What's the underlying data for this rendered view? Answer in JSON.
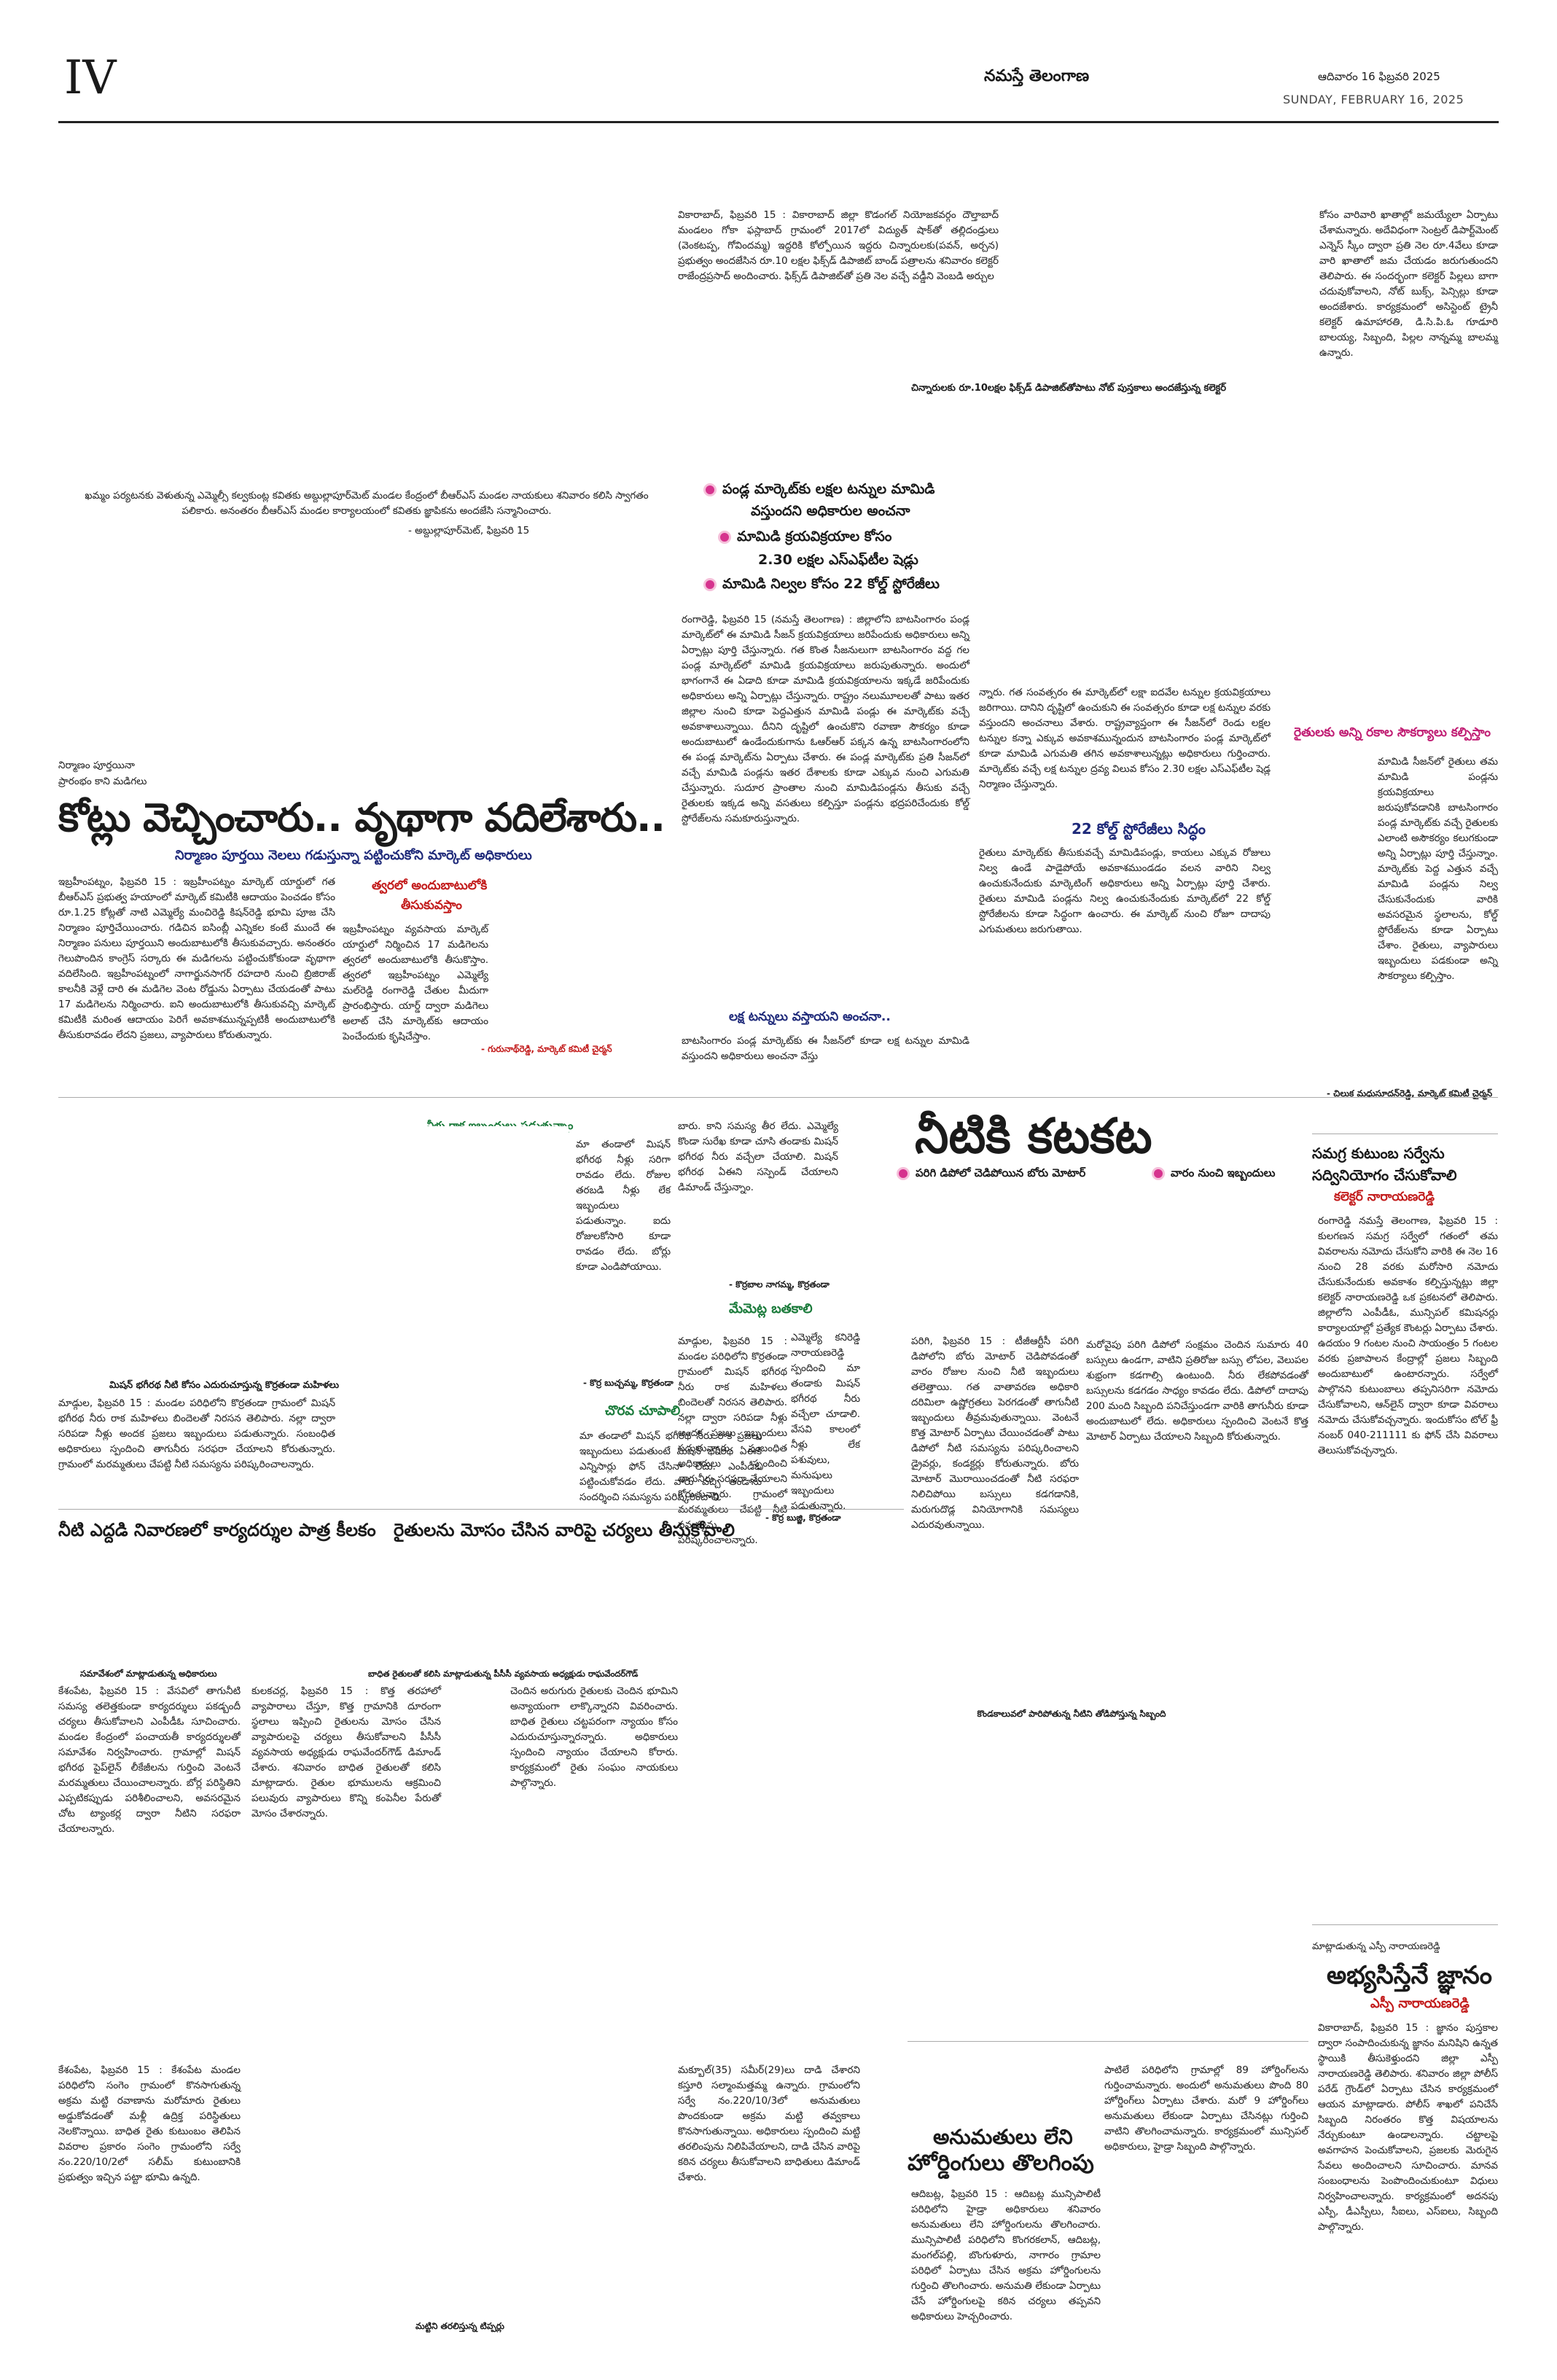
{
  "header": {
    "page_number": "IV",
    "paper_name": "నమస్తే తెలంగాణ",
    "date_telugu": "ఆదివారం 16 ఫిబ్రవరి 2025",
    "date_english": "SUNDAY, FEBRUARY 16, 2025"
  },
  "top_story": {
    "col1": "వికారాబాద్, ఫిబ్రవరి 15 : వికారాబాద్ జిల్లా కొడంగల్ నియోజకవర్గం దౌల్తాబాద్ మండలం గోకా ఫస్లాబాద్ గ్రామంలో 2017లో విద్యుత్ షాక్‌తో తల్లిదండ్రులు (వెంకటప్ప, గోవిందమ్మ) ఇద్దరికి కోల్పోయిన ఇద్దరు చిన్నారులకు(పవన్, అర్చన) ప్రభుత్వం అందజేసిన రూ.10 లక్షల ఫిక్స్‌డ్ డిపాజిట్ బాండ్ పత్రాలను శనివారం కలెక్టర్ రాజేంద్రప్రసాద్ అందించారు. ఫిక్స్‌డ్ డిపాజిట్‌తో ప్రతి నెల వచ్చే వడ్డీని వెంబడి అర్చుల",
    "col2": "కోసం వారివారి ఖాతాల్లో జమయ్యేలా ఏర్పాటు చేశామన్నారు. అదేవిధంగా సెంట్రల్ డిపార్ట్‌మెంట్ ఎన్నెస్ స్కీం ద్వారా ప్రతి నెల రూ.4వేలు కూడా వారి ఖాతాలో జమ చేయడం జరుగుతుందని తెలిపారు. ఈ సందర్భంగా కలెక్టర్ పిల్లలు బాగా చదువుకోవాలని, నోట్ బుక్స్, పెన్సిల్లు కూడా అందజేశారు. కార్యక్రమంలో అసిస్టెంట్ ట్రైనీ కలెక్టర్ ఉమాహారతి, డి.సి.పి.ఓ గూడూరి బాలయ్య, సిబ్బంది, పిల్లల నాన్నమ్మ బాలమ్మ ఉన్నారు.",
    "caption": "చిన్నారులకు రూ.10లక్షల ఫిక్స్‌డ్ డిపాజిట్‌తోపాటు నోట్ పుస్తకాలు అందజేస్తున్న కలెక్టర్"
  },
  "left_photo_caption": "ఖమ్మం పర్యటనకు వెళుతున్న ఎమ్మెల్సీ కల్వకుంట్ల కవితకు అబ్దుల్లాపూర్‌మెట్ మండల కేంద్రంలో బీఆర్ఎస్ మండల నాయకులు శనివారం కలిసి స్వాగతం పలికారు. అనంతరం బీఆర్ఎస్ మండల కార్యాలయంలో కవితకు జ్ఞాపికను అందజేసి సన్మానించారు.",
  "left_photo_credit": "- అబ్దుల్లాపూర్‌మెట్, ఫిబ్రవరి 15",
  "mango_story": {
    "bullet1": "పండ్ల మార్కెట్‌కు లక్షల టన్నుల మామిడి",
    "bullet1b": "వస్తుందని అధికారుల అంచనా",
    "bullet2": "మామిడి క్రయవిక్రయాల కోసం",
    "bullet2b": "2.30 లక్షల ఎస్ఎఫ్‌టీల షెడ్లు",
    "bullet3": "మామిడి నిల్వల కోసం 22 కోల్డ్ స్టోరేజీలు",
    "body": "రంగారెడ్డి, ఫిబ్రవరి 15 (నమస్తే తెలంగాణ) : జిల్లాలోని బాటసింగారం పండ్ల మార్కెట్‌లో ఈ మామిడి సీజన్ క్రయవిక్రయాలు జరిపేందుకు అధికారులు అన్ని ఏర్పాట్లు పూర్తి చేస్తున్నారు. గత కొంత సీజనులుగా బాటసింగారం వద్ద గల పండ్ల మార్కెట్‌లో మామిడి క్రయవిక్రయాలు జరుపుతున్నారు. అందులో భాగంగానే ఈ ఏడాది కూడా మామిడి క్రయవిక్రయాలను ఇక్కడే జరిపేందుకు అధికారులు అన్ని ఏర్పాట్లు చేస్తున్నారు. రాష్ట్రం నలుమూలలతో పాటు ఇతర జిల్లాల నుంచి కూడా పెద్దఎత్తున మామిడి పండ్లు ఈ మార్కెట్‌కు వచ్చే అవకాశాలున్నాయి. దీనిని దృష్టిలో ఉంచుకొని రవాణా సౌకర్యం కూడా అందుబాటులో ఉండేందుకుగాను ఓఆర్ఆర్ పక్కన ఉన్న బాటసింగారంలోని ఈ పండ్ల మార్కెట్‌ను ఏర్పాటు చేశారు. ఈ పండ్ల మార్కెట్‌కు ప్రతి సీజన్‌లో వచ్చే మామిడి పండ్లను ఇతర దేశాలకు కూడా ఎక్కువ నుంచి ఎగుమతి చేస్తున్నారు. సుదూర ప్రాంతాల నుంచి మామిడిపండ్లను తీసుకు వచ్చే రైతులకు ఇక్కడ అన్ని వసతులు కల్పిస్తూ పండ్లను భద్రపరిచేందుకు కోల్డ్ స్టోరేజ్‌లను సమకూరుస్తున్నారు.",
    "col2": "న్నారు. గత సంవత్సరం ఈ మార్కెట్‌లో లక్షా ఐదవేల టన్నుల క్రయవిక్రయాలు జరిగాయి. దానిని దృష్టిలో ఉంచుకుని ఈ సంవత్సరం కూడా లక్ష టన్నుల వరకు వస్తుందని అంచనాలు వేశారు. రాష్ట్రవ్యాప్తంగా ఈ సీజన్‌లో రెండు లక్షల టన్నుల కన్నా ఎక్కువ అవకాశమున్నందున బాటసింగారం పండ్ల మార్కెట్‌లో కూడా మామిడి ఎగుమతి తగిన అవకాశాలున్నట్లు అధికారులు గుర్తించారు. మార్కెట్‌కు వచ్చే లక్ష టన్నుల ద్రవ్య విలువ కోసం 2.30 లక్షల ఎస్ఎఫ్‌టీల షెడ్ల నిర్మాణం చేస్తున్నారు.",
    "subhead": "22 కోల్డ్ స్టోరేజీలు సిద్ధం",
    "col2b": "రైతులు మార్కెట్‌కు తీసుకువచ్చే మామిడిపండ్లు, కాయలు ఎక్కువ రోజులు నిల్వ ఉండే పాడైపోయే అవకాశముండడం వలన వారిని నిల్వ ఉంచుకునేందుకు మార్కెటింగ్ అధికారులు అన్ని ఏర్పాట్లు పూర్తి చేశారు. రైతులు మామిడి పండ్లను నిల్వ ఉంచుకునేందుకు మార్కెట్‌లో 22 కోల్డ్ స్టోరేజీలను కూడా సిద్ధంగా ఉంచారు. ఈ మార్కెట్ నుంచి రోజూ దాదాపు ఎగుమతులు జరుగుతాయి.",
    "subhead2": "లక్ష టన్నులు వస్తాయని అంచనా..",
    "col1b": "బాటసింగారం పండ్ల మార్కెట్‌కు ఈ సీజన్‌లో కూడా లక్ష టన్నుల మామిడి వస్తుందని అధికారులు అంచనా వేస్తు"
  },
  "kotlu_story": {
    "kicker1": "నిర్మాణం పూర్తయినా",
    "kicker2": "ప్రారంభం కాని మడిగలు",
    "headline": "కోట్లు వెచ్చించారు.. వృథాగా వదిలేశారు..",
    "deck": "నిర్మాణం పూర్తయి నెలలు గడుస్తున్నా పట్టించుకోని మార్కెట్ అధికారులు",
    "body": "ఇబ్రహీంపట్నం, ఫిబ్రవరి 15 : ఇబ్రహీంపట్నం మార్కెట్ యార్డులో గత బీఆర్ఎస్ ప్రభుత్వ హయాంలో మార్కెట్ కమిటీకి ఆదాయం పెంచడం కోసం రూ.1.25 కోట్లతో నాటి ఎమ్మెల్యే మంచిరెడ్డి కిషన్‌రెడ్డి భూమి పూజ చేసి నిర్మాణం పూర్తిచేయించారు. గడిచిన ఐసింబ్లీ ఎన్నికల కంటే ముందే ఈ నిర్మాణం పనులు పూర్తయిని అందుబాటులోకి తీసుకువచ్చారు. అనంతరం గెలుపొందిన కాంగ్రెస్ సర్కారు ఈ మడిగలను పట్టించుకోకుండా వృథాగా వదిలేసింది. ఇబ్రహీంపట్నంలో నాగార్జునసాగర్ రహదారి నుంచి బ్రిజిరాజ్ కాలనీకి వెళ్లే దారి ఈ మడిగెల వెంట రోడ్డును ఏర్పాటు చేయడంతో పాటు 17 మడిగెలను నిర్మించారు. ఐని అందుబాటులోకి తీసుకువచ్చి మార్కెట్ కమిటీకి మరింత ఆదాయం పెరిగే అవకాశమున్నప్పటికీ అందుబాటులోకి తీసుకురావడం లేదని ప్రజలు, వ్యాపారులు కోరుతున్నారు.",
    "side_head1": "త్వరలో అందుబాటులోకి",
    "side_head2": "తీసుకువస్తాం",
    "side_body": "ఇబ్రహీంపట్నం వ్యవసాయ మార్కెట్ యార్డులో నిర్మించిన 17 మడిగెలను త్వరలో అందుబాటులోకి తీసుకొస్తాం. త్వరలో ఇబ్రహీంపట్నం ఎమ్మెల్యే మల్‌రెడ్డి రంగారెడ్డి చేతుల మీదుగా ప్రారంభిస్తారు. యార్డ్ ద్వారా మడిగెలు అలాట్ చేసి మార్కెట్‌కు ఆదాయం పెంచేందుకు కృషిచేస్తాం.",
    "side_credit": "- గురునాథ్‌రెడ్డి, మార్కెట్ కమిటీ చైర్మన్"
  },
  "mango_facilities": {
    "head": "రైతులకు అన్ని రకాల సౌకర్యాలు కల్పిస్తాం",
    "body": "మామిడి సీజన్‌లో రైతులు తమ మామిడి పండ్లను క్రయవిక్రయాలు జరుపుకోవడానికి బాటసింగారం పండ్ల మార్కెట్‌కు వచ్చే రైతులకు ఎలాంటి అసౌకర్యం కలుగకుండా అన్ని ఏర్పాట్లు పూర్తి చేస్తున్నాం. మార్కెట్‌కు పెద్ద ఎత్తున వచ్చే మామిడి పండ్లను నిల్వ చేసుకునేందుకు వారికి అవసరమైన స్థలాలను, కోల్డ్ స్టోరేజ్‌లను కూడా ఏర్పాటు చేశాం. రైతులు, వ్యాపారులు ఇబ్బందులు పడకుండా అన్ని సౌకర్యాలు కల్పిస్తాం.",
    "credit": "- చిలుక మధుసూదన్‌రెడ్డి, మార్కెట్ కమిటీ చైర్మన్"
  },
  "water_story": {
    "headline": "నీటికి కటకట",
    "bullet1": "పరిగి డిపోలో చెడిపోయిన బోరు మోటార్",
    "bullet2": "వారం నుంచి ఇబ్బందులు",
    "col1": "పరిగి, ఫిబ్రవరి 15 : టీజీఆర్టీసీ పరిగి డిపోలోని బోరు మోటార్ చెడిపోవడంతో వారం రోజుల నుంచి నీటి ఇబ్బందులు తలెత్తాయి. గత వాతావరణ అధికారి దరిమిలా ఉష్ణోగ్రతలు పెరగడంతో తాగునీటి ఇబ్బందులు తీవ్రమవుతున్నాయి. వెంటనే కొత్త మోటార్ ఏర్పాటు చేయించడంతో పాటు డిపోలో నీటి సమస్యను పరిష్కరించాలని డ్రైవర్లు, కండక్టర్లు కోరుతున్నారు. బోరు మోటార్ మొరాయించడంతో నీటి సరఫరా నిలిచిపోయి బస్సులు కడగడానికి, మరుగుదొడ్ల వినియోగానికి సమస్యలు ఎదురవుతున్నాయి.",
    "col2": "మరోవైపు పరిగి డిపోలో సంక్షమం చెందిన సుమారు 40 బస్సులు ఉండగా, వాటిని ప్రతిరోజు బస్సు లోపల, వెలుపల శుభ్రంగా కడగాల్సి ఉంటుంది. నీరు లేకపోవడంతో బస్సులను కడగడం సాధ్యం కావడం లేదు. డిపోలో దాదాపు 200 మంది సిబ్బంది పనిచేస్తుండగా వారికి తాగునీరు కూడా అందుబాటులో లేదు. అధికారులు స్పందించి వెంటనే కొత్త మోటార్ ఏర్పాటు చేయాలని సిబ్బంది కోరుతున్నారు.",
    "caption": "కొండకాలువలో పారిపోతున్న నీటిని తోడిపోస్తున్న సిబ్బంది"
  },
  "survey_story": {
    "kicker": "సమగ్ర కుటుంబ సర్వేను",
    "headline": "సద్వినియోగం చేసుకోవాలి",
    "byline": "కలెక్టర్ నారాయణరెడ్డి",
    "body": "రంగారెడ్డి నమస్తే తెలంగాణ, ఫిబ్రవరి 15 : కులగణన సమగ్ర సర్వేలో గతంలో తమ వివరాలను నమోదు చేసుకోని వారికి ఈ నెల 16 నుంచి 28 వరకు మరోసారి నమోదు చేసుకునేందుకు అవకాశం కల్పిస్తున్నట్లు జిల్లా కలెక్టర్ నారాయణరెడ్డి ఒక ప్రకటనలో తెలిపారు. జిల్లాలోని ఎంపీడీఓ, మున్సిపల్ కమిషనర్లు కార్యాలయాల్లో ప్రత్యేక కౌంటర్లు ఏర్పాటు చేశారు. ఉదయం 9 గంటల నుంచి సాయంత్రం 5 గంటల వరకు ప్రజాపాలన కేంద్రాల్లో ప్రజలు సిబ్బంది అందుబాటులో ఉంటారన్నారు. సర్వేలో పాల్గొనని కుటుంబాలు తప్పనిసరిగా నమోదు చేసుకోవాలని, ఆన్‌లైన్ ద్వారా కూడా వివరాలు నమోదు చేసుకోవచ్చన్నారు. ఇందుకోసం టోల్ ఫ్రీ నంబర్ 040-211111 కు ఫోన్ చేసి వివరాలు తెలుసుకోవచ్చన్నారు."
  },
  "mission_story": {
    "caption_top": "నీళ్లు రాక ఇబ్బందులు పడుతున్నాం",
    "col1": "మా తండాలో మిషన్ భగీరథ నీళ్లు సరిగా రావడం లేదు. రోజుల తరబడి నీళ్లు లేక ఇబ్బందులు పడుతున్నాం. ఐదు రోజులకోసారి కూడా రావడం లేదు. బోర్లు కూడా ఎండిపోయాయి.",
    "col2": "బారు. కాని సమస్య తీర లేదు. ఎమ్మెల్యే కొండా సురేఖ కూడా చూసి తండాకు మిషన్ భగీరథ నీరు వచ్చేలా చేయాలి. మిషన్ భగీరథ ఏఈని సస్పెండ్ చేయాలని డిమాండ్ చేస్తున్నాం.",
    "credit1": "- కొర్రబాల నాగమ్మ, కొర్రతండా",
    "head2": "మేమెట్ల బతకాలి",
    "body2": "ఎమ్మెల్యే కనిరెడ్డి నారాయణరెడ్డి స్పందించి మా తండాకు మిషన్ భగీరథ నీరు వచ్చేలా చూడాలి. వేసవి కాలంలో నీళ్లు లేక పశువులు, మనుషులు ఇబ్బందులు పడుతున్నారు.",
    "credit2": "- కొర్ర బుచ్చమ్మ, కొర్రతండా",
    "head3": "చొరవ చూపాలి",
    "body3": "మా తండాలో మిషన్ భగీరథ నీరు రాక ప్రజలు ఇబ్బందులు పడుతుంటే మిషన్ భగీరథ ఏఈకి ఎన్నిసార్లు ఫోన్ చేసినా లేదు. ఎంపీడీఓ పట్టించుకోవడం లేదు. వారు వచ్చి తండాను సందర్శించి సమస్యను పరిష్కరించాలి.",
    "credit3": "- కొర్ర బుజ్జి, కొర్రతండా",
    "photo_caption": "మిషన్ భగీరథ నీటి కోసం ఎదురుచూస్తున్న కొర్రతండా మహిళలు",
    "body_left": "మాడ్గుల, ఫిబ్రవరి 15 : మండల పరిధిలోని కొర్రతండా గ్రామంలో మిషన్ భగీరథ నీరు రాక మహిళలు బిందెలతో నిరసన తెలిపారు. నల్లా ద్వారా సరిపడా నీళ్లు అందక ప్రజలు ఇబ్బందులు పడుతున్నారు. సంబంధిత అధికారులు స్పందించి తాగునీరు సరఫరా చేయాలని కోరుతున్నారు. గ్రామంలో మరమ్మతులు చేపట్టి నీటి సమస్యను పరిష్కరించాలన్నారు."
  },
  "leaders_story": {
    "headline": "నీటి ఎద్దడి నివారణలో కార్యదర్శుల పాత్ర కీలకం",
    "caption": "సమావేశంలో మాట్లాడుతున్న అధికారులు",
    "body": "కేశంపేట, ఫిబ్రవరి 15 : వేసవిలో తాగునీటి సమస్య తలెత్తకుండా కార్యదర్శులు పకడ్బందీ చర్యలు తీసుకోవాలని ఎంపీడీఓ సూచించారు. మండల కేంద్రంలో పంచాయతీ కార్యదర్శులతో సమావేశం నిర్వహించారు. గ్రామాల్లో మిషన్ భగీరథ పైప్‌లైన్ లీకేజీలను గుర్తించి వెంటనే మరమ్మతులు చేయించాలన్నారు. బోర్ల పరిస్థితిని ఎప్పటికప్పుడు పరిశీలించాలని, అవసరమైన చోట ట్యాంకర్ల ద్వారా నీటిని సరఫరా చేయాలన్నారు.",
    "body2": "కేశంపేట, ఫిబ్రవరి 15 : కేశంపేట మండల పరిధిలోని సంగెం గ్రామంలో కొనసాగుతున్న అక్రమ మట్టి రవాణాను మరోమారు రైతులు అడ్డుకోవడంతో మళ్లీ ఉద్రిక్త పరిస్థితులు నెలకొన్నాయి. బాధిత రైతు కుటుంబం తెలిపిన వివరాల ప్రకారం సంగెం గ్రామంలోని సర్వే నం.220/10/2లో సలీమ్ కుటుంబానికి ప్రభుత్వం ఇచ్చిన పట్టా భూమి ఉన్నది."
  },
  "farmer_story": {
    "headline": "రైతులను మోసం చేసిన వారిపై చర్యలు తీసుకోవాలి",
    "kicker": "బాధిత రైతులతో కలిసి మాట్లాడుతున్న పీసీసీ వ్యవసాయ అధ్యక్షుడు రాఘవేందర్‌గౌడ్",
    "col1": "కులకచర్ల, ఫిబ్రవరి 15 : కొత్త తరహాలో వ్యాపారాలు చేస్తూ, కొత్త గ్రామానికి దూరంగా స్థలాలు ఇప్పించి రైతులను మోసం చేసిన వ్యాపారులపై చర్యలు తీసుకోవాలని పీసీసీ వ్యవసాయ అధ్యక్షుడు రాఘవేందర్‌గౌడ్ డిమాండ్ చేశారు. శనివారం బాధిత రైతులతో కలిసి మాట్లాడారు. రైతుల భూములను ఆక్రమించి పలువురు వ్యాపారులు కొన్ని కంపెనీల పేరుతో మోసం చేశారన్నారు.",
    "col2": "చెందిన అరుగురు రైతులకు చెందిన భూమిని అన్యాయంగా లాక్కొన్నారని వివరించారు. బాధిత రైతులు చట్టపరంగా న్యాయం కోసం ఎదురుచూస్తున్నారన్నారు. అధికారులు స్పందించి న్యాయం చేయాలని కోరారు. కార్యక్రమంలో రైతు సంఘం నాయకులు పాల్గొన్నారు."
  },
  "madigala_caption": "మట్టిని తరలిస్తున్న టిప్పర్లు",
  "maklu_story": {
    "body": "మక్బూల్(35) సమీర్(29)లు దాడి చేశారని కస్తూరి సల్మాంమత్తమ్మ ఉన్నారు. గ్రామంలోని సర్వే నం.220/10/3లో అనుమతులు పొందకుండా అక్రమ మట్టి తవ్వకాలు కొనసాగుతున్నాయి. అధికారులు స్పందించి మట్టి తరలింపును నిలిపివేయాలని, దాడి చేసిన వారిపై కఠిన చర్యలు తీసుకోవాలని బాధితులు డిమాండ్ చేశారు."
  },
  "hoarding_story": {
    "headline1": "అనుమతులు లేని",
    "headline2": "హోర్డింగులు తొలగింపు",
    "col1": "ఆదిబట్ల, ఫిబ్రవరి 15 : ఆదిబట్ల మున్సిపాలిటీ పరిధిలోని హైడ్రా అధికారులు శనివారం అనుమతులు లేని హోర్డింగులను తొలగించారు. మున్సిపాలిటీ పరిధిలోని కొంగరకలాన్, ఆదిబట్ల, మంగల్‌పల్లి, బొంగుళూరు, నాగారం గ్రామాల పరిధిలో ఏర్పాటు చేసిన అక్రమ హోర్డింగులను గుర్తించి తొలగించారు. అనుమతి లేకుండా ఏర్పాటు చేసే హోర్డింగులపై కఠిన చర్యలు తప్పవని అధికారులు హెచ్చరించారు.",
    "col2": "పాటిలే పరిధిలోని గ్రామాల్లో 89 హోర్డింగ్‌లను గుర్తించామన్నారు. అందులో అనుమతులు పొంది 80 హోర్డింగ్‌లు ఏర్పాటు చేశారు. మరో 9 హోర్డింగ్‌లు అనుమతులు లేకుండా ఏర్పాటు చేసినట్లు గుర్తించి వాటిని తొలగించామన్నారు. కార్యక్రమంలో మున్సిపల్ అధికారులు, హైడ్రా సిబ్బంది పాల్గొన్నారు."
  },
  "knowledge_story": {
    "kicker": "మాట్లాడుతున్న ఎస్పీ నారాయణరెడ్డి",
    "headline": "అభ్యసిస్తేనే జ్ఞానం",
    "byline": "ఎస్పీ నారాయణరెడ్డి",
    "body": "వికారాబాద్, ఫిబ్రవరి 15 : జ్ఞానం పుస్తకాల ద్వారా సంపాదించుకున్న జ్ఞానం మనిషిని ఉన్నత స్థాయికి తీసుకెళ్తుందని జిల్లా ఎస్పీ నారాయణరెడ్డి తెలిపారు. శనివారం జిల్లా పోలీస్ పరేడ్ గ్రౌండ్‌లో ఏర్పాటు చేసిన కార్యక్రమంలో ఆయన మాట్లాడారు. పోలీస్ శాఖలో పనిచేసే సిబ్బంది నిరంతరం కొత్త విషయాలను నేర్చుకుంటూ ఉండాలన్నారు. చట్టాలపై అవగాహన పెంచుకోవాలని, ప్రజలకు మెరుగైన సేవలు అందించాలని సూచించారు. మానవ సంబంధాలను పెంపొందించుకుంటూ విధులు నిర్వహించాలన్నారు. కార్యక్రమంలో అదనపు ఎస్పీ, డీఎస్పీలు, సీఐలు, ఎస్ఐలు, సిబ్బంది పాల్గొన్నారు."
  }
}
